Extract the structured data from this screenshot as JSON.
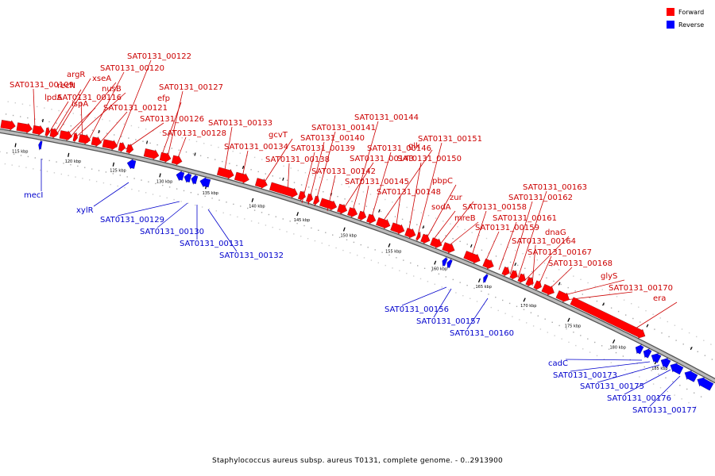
{
  "colors": {
    "forward": "#ff0000",
    "reverse": "#0000ff",
    "forward_label": "#cc0000",
    "reverse_label": "#0000cc",
    "backbone": "#999999"
  },
  "legend": {
    "forward": "Forward",
    "reverse": "Reverse"
  },
  "caption": "Staphylococcus aureus subsp. aureus T0131, complete genome. - 0..2913900",
  "ticks": [
    "115 kbp",
    "120 kbp",
    "125 kbp",
    "130 kbp",
    "135 kbp",
    "140 kbp",
    "145 kbp",
    "150 kbp",
    "155 kbp",
    "160 kbp",
    "165 kbp",
    "170 kbp",
    "175 kbp",
    "180 kbp",
    "185 kbp"
  ],
  "forward_genes": [
    "SAT0131_00109",
    "lpdA",
    "recN",
    "argR",
    "ispA",
    "xseA",
    "nusB",
    "SAT0131_00116",
    "SAT0131_00120",
    "SAT0131_00121",
    "SAT0131_00122",
    "SAT0131_00126",
    "efp",
    "SAT0131_00127",
    "SAT0131_00128",
    "SAT0131_00133",
    "SAT0131_00134",
    "gcvT",
    "SAT0131_00138",
    "SAT0131_00139",
    "SAT0131_00140",
    "SAT0131_00141",
    "SAT0131_00142",
    "SAT0131_00143",
    "SAT0131_00144",
    "SAT0131_00145",
    "SAT0131_00146",
    "glk",
    "SAT0131_00148",
    "SAT0131_00150",
    "SAT0131_00151",
    "pbpC",
    "sodA",
    "zur",
    "mreB",
    "SAT0131_00158",
    "SAT0131_00159",
    "SAT0131_00161",
    "SAT0131_00162",
    "SAT0131_00163",
    "dnaG",
    "SAT0131_00164",
    "SAT0131_00167",
    "SAT0131_00168",
    "glyS",
    "SAT0131_00170",
    "era"
  ],
  "reverse_genes": [
    "mecI",
    "xylR",
    "SAT0131_00129",
    "SAT0131_00130",
    "SAT0131_00131",
    "SAT0131_00132",
    "SAT0131_00156",
    "SAT0131_00157",
    "SAT0131_00160",
    "cadC",
    "SAT0131_00173",
    "SAT0131_00175",
    "SAT0131_00176",
    "SAT0131_00177"
  ]
}
